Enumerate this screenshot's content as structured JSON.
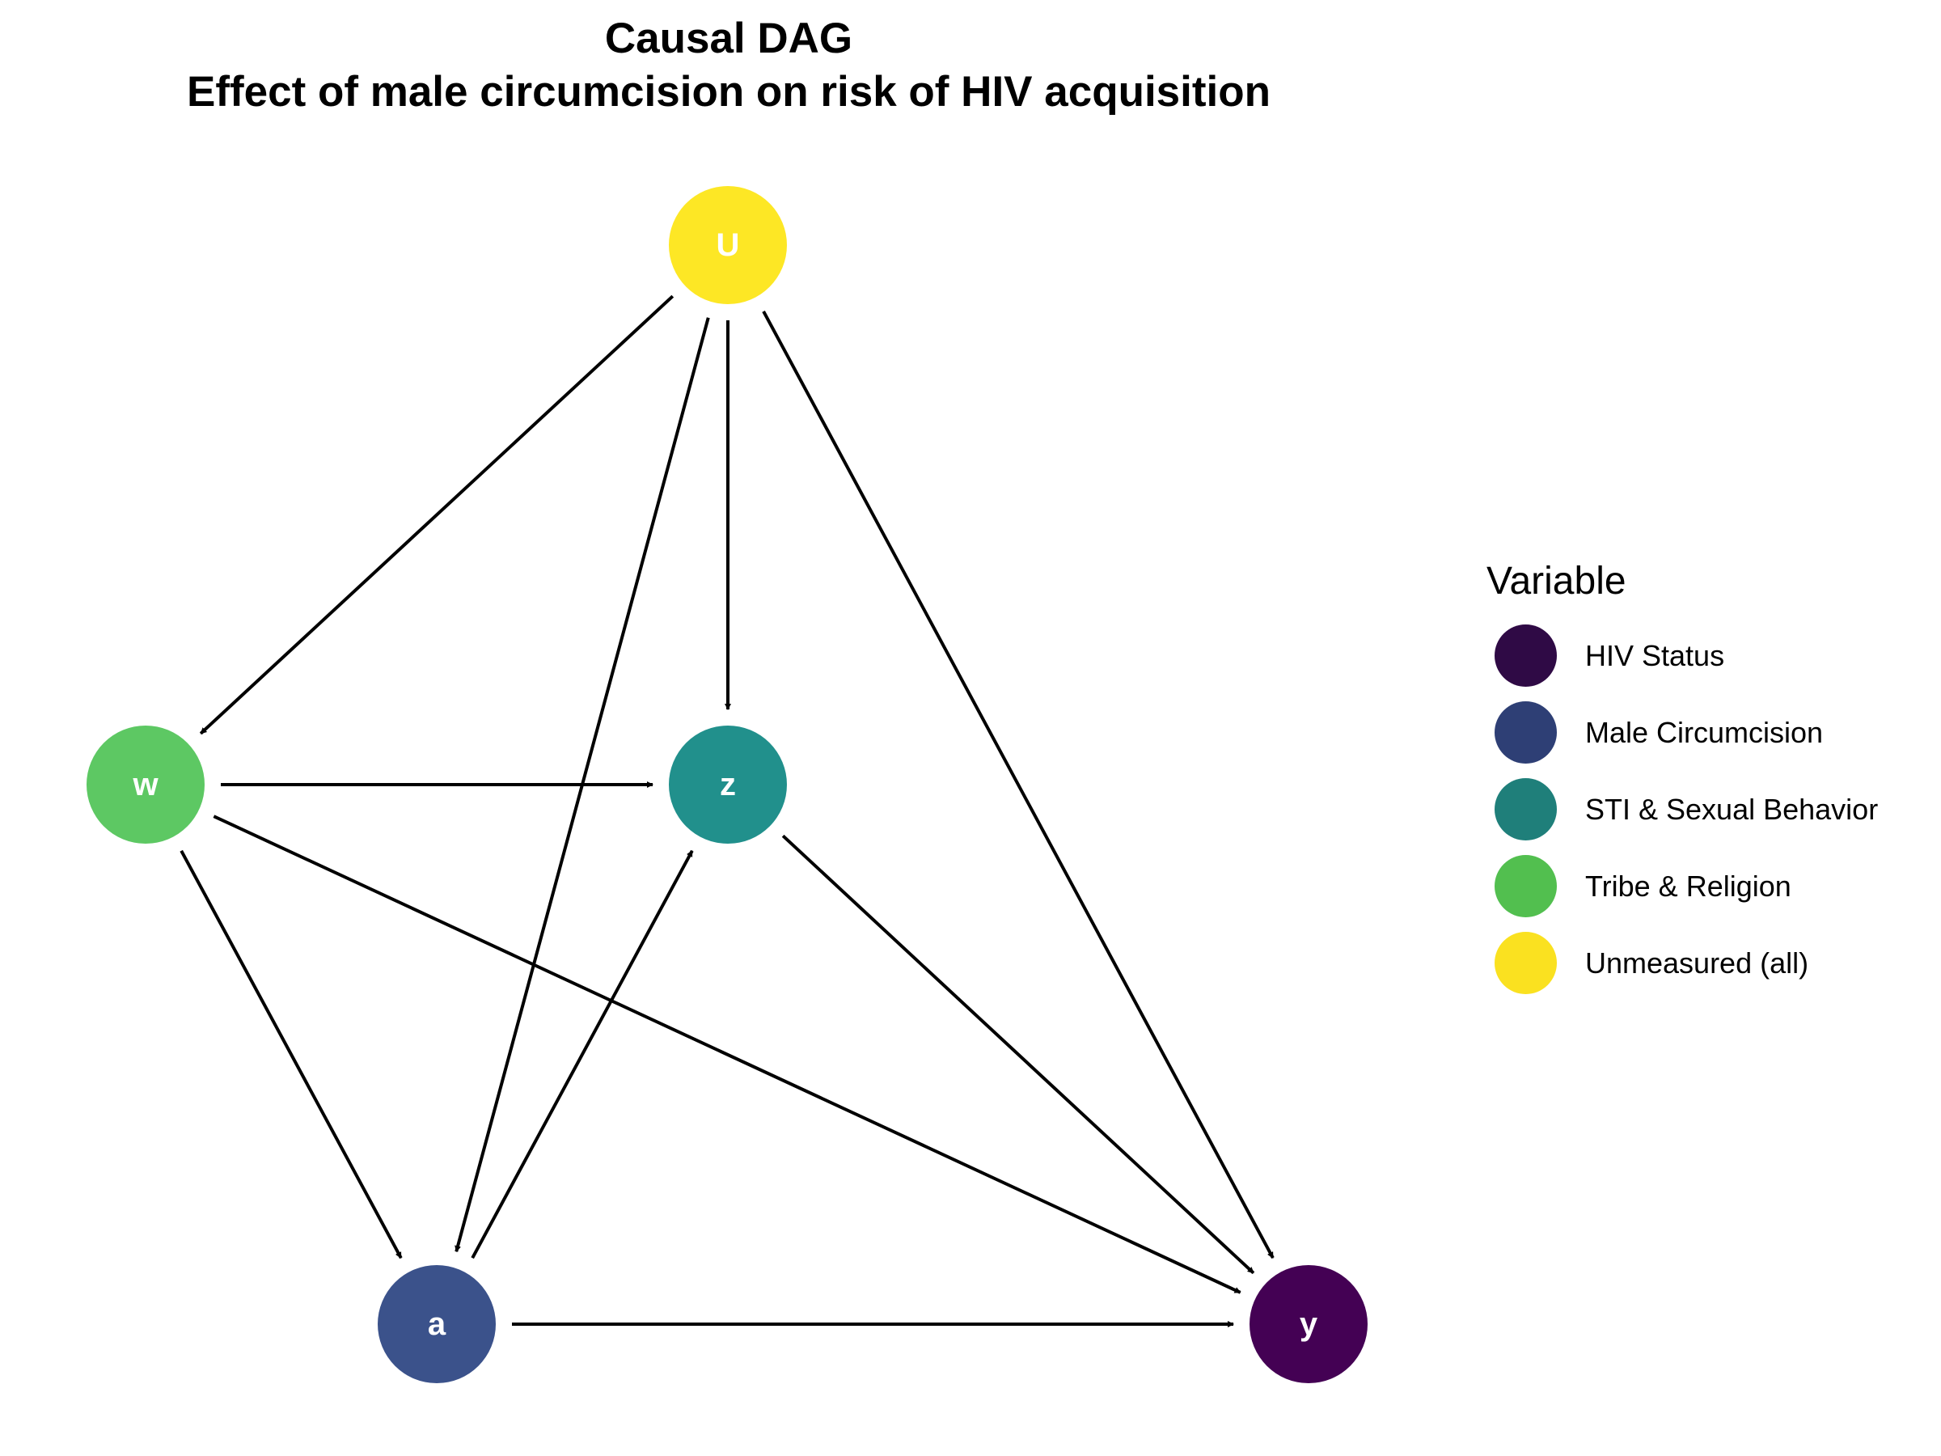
{
  "title": {
    "line1": "Causal DAG",
    "line2": "Effect of male circumcision on risk of HIV acquisition"
  },
  "nodes": [
    {
      "id": "U",
      "label": "U",
      "group": "Unmeasured (all)",
      "color": "#FDE725"
    },
    {
      "id": "w",
      "label": "w",
      "group": "Tribe & Religion",
      "color": "#5DC863"
    },
    {
      "id": "z",
      "label": "z",
      "group": "STI & Sexual Behavior",
      "color": "#21908C"
    },
    {
      "id": "a",
      "label": "a",
      "group": "Male Circumcision",
      "color": "#3B528B"
    },
    {
      "id": "y",
      "label": "y",
      "group": "HIV Status",
      "color": "#440154"
    }
  ],
  "edges": [
    {
      "from": "U",
      "to": "w"
    },
    {
      "from": "U",
      "to": "z"
    },
    {
      "from": "U",
      "to": "a"
    },
    {
      "from": "U",
      "to": "y"
    },
    {
      "from": "w",
      "to": "z"
    },
    {
      "from": "w",
      "to": "a"
    },
    {
      "from": "w",
      "to": "y"
    },
    {
      "from": "a",
      "to": "z"
    },
    {
      "from": "a",
      "to": "y"
    },
    {
      "from": "z",
      "to": "y"
    }
  ],
  "legend": {
    "title": "Variable",
    "items": [
      {
        "label": "HIV Status",
        "color": "#2F0A45"
      },
      {
        "label": "Male Circumcision",
        "color": "#2E3F75"
      },
      {
        "label": "STI & Sexual Behavior",
        "color": "#1F7F7A"
      },
      {
        "label": "Tribe & Religion",
        "color": "#52BF4F"
      },
      {
        "label": "Unmeasured (all)",
        "color": "#FAE120"
      }
    ]
  }
}
